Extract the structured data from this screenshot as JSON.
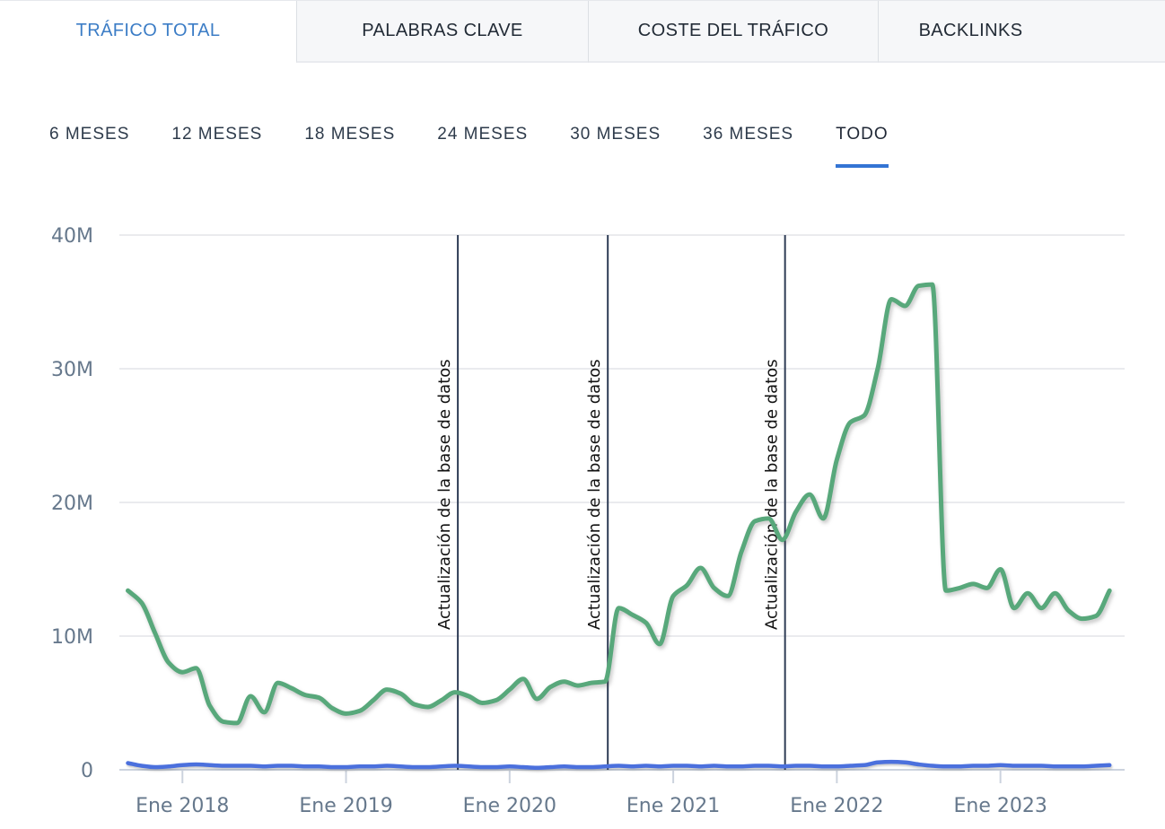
{
  "tabs": {
    "items": [
      {
        "label": "TRÁFICO TOTAL",
        "active": true
      },
      {
        "label": "PALABRAS CLAVE",
        "active": false
      },
      {
        "label": "COSTE DEL TRÁFICO",
        "active": false
      },
      {
        "label": "BACKLINKS",
        "active": false
      }
    ]
  },
  "time_ranges": {
    "items": [
      {
        "label": "6 MESES",
        "active": false
      },
      {
        "label": "12 MESES",
        "active": false
      },
      {
        "label": "18 MESES",
        "active": false
      },
      {
        "label": "24 MESES",
        "active": false
      },
      {
        "label": "30 MESES",
        "active": false
      },
      {
        "label": "36 MESES",
        "active": false
      },
      {
        "label": "TODO",
        "active": true
      }
    ]
  },
  "colors": {
    "active_tab_text": "#3c7dc6",
    "range_underline": "#3374d4",
    "primary_line": "#58a87b",
    "secondary_line": "#4b70dd",
    "marker_line": "#2e3c55",
    "gridline": "#eaebee",
    "axis_line": "#ccd3de",
    "axis_text": "#66788c"
  },
  "chart_data": {
    "type": "line",
    "unit_suffix": "M",
    "x_months": [
      "2017-09",
      "2017-10",
      "2017-11",
      "2017-12",
      "2018-01",
      "2018-02",
      "2018-03",
      "2018-04",
      "2018-05",
      "2018-06",
      "2018-07",
      "2018-08",
      "2018-09",
      "2018-10",
      "2018-11",
      "2018-12",
      "2019-01",
      "2019-02",
      "2019-03",
      "2019-04",
      "2019-05",
      "2019-06",
      "2019-07",
      "2019-08",
      "2019-09",
      "2019-10",
      "2019-11",
      "2019-12",
      "2020-01",
      "2020-02",
      "2020-03",
      "2020-04",
      "2020-05",
      "2020-06",
      "2020-07",
      "2020-08",
      "2020-09",
      "2020-10",
      "2020-11",
      "2020-12",
      "2021-01",
      "2021-02",
      "2021-03",
      "2021-04",
      "2021-05",
      "2021-06",
      "2021-07",
      "2021-08",
      "2021-09",
      "2021-10",
      "2021-11",
      "2021-12",
      "2022-01",
      "2022-02",
      "2022-03",
      "2022-04",
      "2022-05",
      "2022-06",
      "2022-07",
      "2022-08",
      "2022-09",
      "2022-10",
      "2022-11",
      "2022-12",
      "2023-01",
      "2023-02",
      "2023-03",
      "2023-04",
      "2023-05",
      "2023-06",
      "2023-07",
      "2023-08",
      "2023-09"
    ],
    "series": [
      {
        "id": "primary",
        "color": "#58a87b",
        "values_millions": [
          13.4,
          12.5,
          10.2,
          8.0,
          7.3,
          7.6,
          4.8,
          3.6,
          3.5,
          5.5,
          4.3,
          6.5,
          6.1,
          5.6,
          5.4,
          4.6,
          4.2,
          4.4,
          5.2,
          6.0,
          5.7,
          4.9,
          4.7,
          5.2,
          5.8,
          5.5,
          5.0,
          5.2,
          6.0,
          6.8,
          5.3,
          6.2,
          6.6,
          6.3,
          6.5,
          6.6,
          12.1,
          11.6,
          11.0,
          9.4,
          13.0,
          13.8,
          15.1,
          13.6,
          13.0,
          16.3,
          18.6,
          18.8,
          17.2,
          19.3,
          20.6,
          18.8,
          23.2,
          26.0,
          26.5,
          30.0,
          35.2,
          34.7,
          36.2,
          36.3,
          13.4,
          13.6,
          13.9,
          13.6,
          15.0,
          12.1,
          13.2,
          12.1,
          13.2,
          11.9,
          11.3,
          11.5,
          13.4
        ]
      },
      {
        "id": "secondary",
        "color": "#4b70dd",
        "values_millions": [
          0.5,
          0.3,
          0.2,
          0.25,
          0.35,
          0.4,
          0.35,
          0.3,
          0.3,
          0.3,
          0.25,
          0.3,
          0.3,
          0.25,
          0.25,
          0.2,
          0.2,
          0.25,
          0.25,
          0.3,
          0.25,
          0.2,
          0.2,
          0.25,
          0.3,
          0.25,
          0.2,
          0.2,
          0.25,
          0.2,
          0.15,
          0.2,
          0.25,
          0.2,
          0.2,
          0.25,
          0.3,
          0.25,
          0.3,
          0.25,
          0.3,
          0.3,
          0.25,
          0.3,
          0.25,
          0.25,
          0.3,
          0.3,
          0.25,
          0.3,
          0.3,
          0.25,
          0.25,
          0.3,
          0.35,
          0.55,
          0.6,
          0.55,
          0.4,
          0.3,
          0.25,
          0.25,
          0.3,
          0.3,
          0.35,
          0.3,
          0.3,
          0.3,
          0.25,
          0.25,
          0.25,
          0.3,
          0.35
        ]
      }
    ],
    "y_axis": {
      "min": 0,
      "max": 40,
      "ticks": [
        {
          "value": 0,
          "label": "0"
        },
        {
          "value": 10,
          "label": "10M"
        },
        {
          "value": 20,
          "label": "20M"
        },
        {
          "value": 30,
          "label": "30M"
        },
        {
          "value": 40,
          "label": "40M"
        }
      ]
    },
    "x_axis": {
      "ticks": [
        {
          "month": "2018-01",
          "label": "Ene 2018"
        },
        {
          "month": "2019-01",
          "label": "Ene 2019"
        },
        {
          "month": "2020-01",
          "label": "Ene 2020"
        },
        {
          "month": "2021-01",
          "label": "Ene 2021"
        },
        {
          "month": "2022-01",
          "label": "Ene 2022"
        },
        {
          "month": "2023-01",
          "label": "Ene 2023"
        }
      ]
    },
    "markers": [
      {
        "month": "2019-09",
        "label": "Actualización de la base de datos"
      },
      {
        "month": "2020-08",
        "label": "Actualización de la base de datos"
      },
      {
        "month": "2021-09",
        "label": "Actualización de la base de datos"
      }
    ],
    "grid": true,
    "legend": "none"
  }
}
